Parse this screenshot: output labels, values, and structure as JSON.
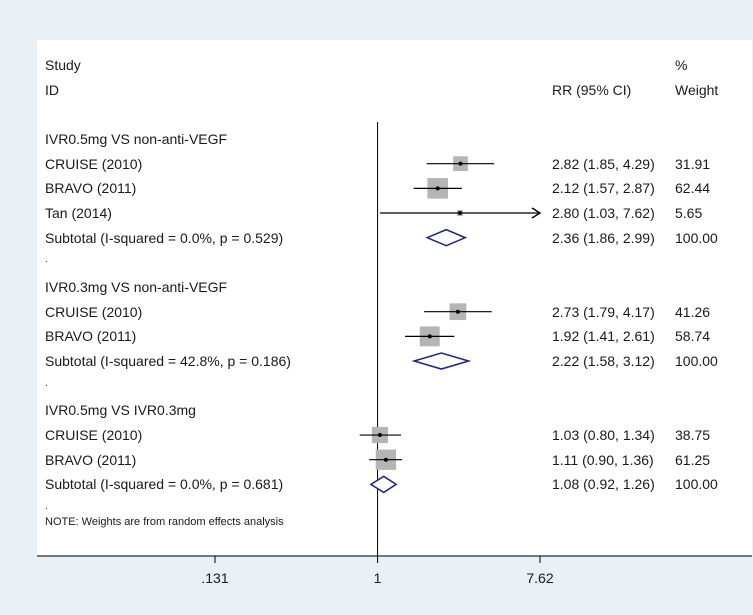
{
  "header": {
    "study_line1": "Study",
    "study_line2": "ID",
    "rr": "RR (95% CI)",
    "weight_line1": "%",
    "weight_line2": "Weight"
  },
  "note": "NOTE: Weights are from random effects analysis",
  "colors": {
    "background": "#e9f0f6",
    "panel": "#ffffff",
    "box": "#b5b5b5",
    "diamond": "#1f2b7a",
    "line": "#000000"
  },
  "chart_data": {
    "type": "forest",
    "scale": "log",
    "reference_line": 1,
    "ticks": [
      {
        "value": 0.131,
        "label": ".131"
      },
      {
        "value": 1,
        "label": "1"
      },
      {
        "value": 7.62,
        "label": "7.62"
      }
    ],
    "rows": [
      {
        "kind": "group",
        "label": "IVR0.5mg VS non-anti-VEGF"
      },
      {
        "kind": "study",
        "label": "CRUISE (2010)",
        "rr": 2.82,
        "lo": 1.85,
        "hi": 4.29,
        "ci": "2.82 (1.85, 4.29)",
        "weight": 31.91,
        "weight_label": "31.91"
      },
      {
        "kind": "study",
        "label": "BRAVO (2011)",
        "rr": 2.12,
        "lo": 1.57,
        "hi": 2.87,
        "ci": "2.12 (1.57, 2.87)",
        "weight": 62.44,
        "weight_label": "62.44"
      },
      {
        "kind": "study",
        "label": "Tan  (2014)",
        "rr": 2.8,
        "lo": 1.03,
        "hi": 7.62,
        "ci": "2.80 (1.03, 7.62)",
        "weight": 5.65,
        "weight_label": "5.65",
        "arrow": true
      },
      {
        "kind": "subtotal",
        "label": "Subtotal  (I-squared = 0.0%, p = 0.529)",
        "rr": 2.36,
        "lo": 1.86,
        "hi": 2.99,
        "ci": "2.36 (1.86, 2.99)",
        "weight_label": "100.00"
      },
      {
        "kind": "spacer",
        "label": "."
      },
      {
        "kind": "group",
        "label": "IVR0.3mg VS non-anti-VEGF"
      },
      {
        "kind": "study",
        "label": "CRUISE (2010)",
        "rr": 2.73,
        "lo": 1.79,
        "hi": 4.17,
        "ci": "2.73 (1.79, 4.17)",
        "weight": 41.26,
        "weight_label": "41.26"
      },
      {
        "kind": "study",
        "label": "BRAVO (2011)",
        "rr": 1.92,
        "lo": 1.41,
        "hi": 2.61,
        "ci": "1.92 (1.41, 2.61)",
        "weight": 58.74,
        "weight_label": "58.74"
      },
      {
        "kind": "subtotal",
        "label": "Subtotal  (I-squared = 42.8%, p = 0.186)",
        "rr": 2.22,
        "lo": 1.58,
        "hi": 3.12,
        "ci": "2.22 (1.58, 3.12)",
        "weight_label": "100.00"
      },
      {
        "kind": "spacer",
        "label": "."
      },
      {
        "kind": "group",
        "label": "IVR0.5mg VS IVR0.3mg"
      },
      {
        "kind": "study",
        "label": "CRUISE (2010)",
        "rr": 1.03,
        "lo": 0.8,
        "hi": 1.34,
        "ci": "1.03 (0.80, 1.34)",
        "weight": 38.75,
        "weight_label": "38.75"
      },
      {
        "kind": "study",
        "label": "BRAVO (2011)",
        "rr": 1.11,
        "lo": 0.9,
        "hi": 1.36,
        "ci": "1.11 (0.90, 1.36)",
        "weight": 61.25,
        "weight_label": "61.25"
      },
      {
        "kind": "subtotal",
        "label": "Subtotal  (I-squared = 0.0%, p = 0.681)",
        "rr": 1.08,
        "lo": 0.92,
        "hi": 1.26,
        "ci": "1.08 (0.92, 1.26)",
        "weight_label": "100.00"
      },
      {
        "kind": "spacer",
        "label": "."
      }
    ]
  }
}
